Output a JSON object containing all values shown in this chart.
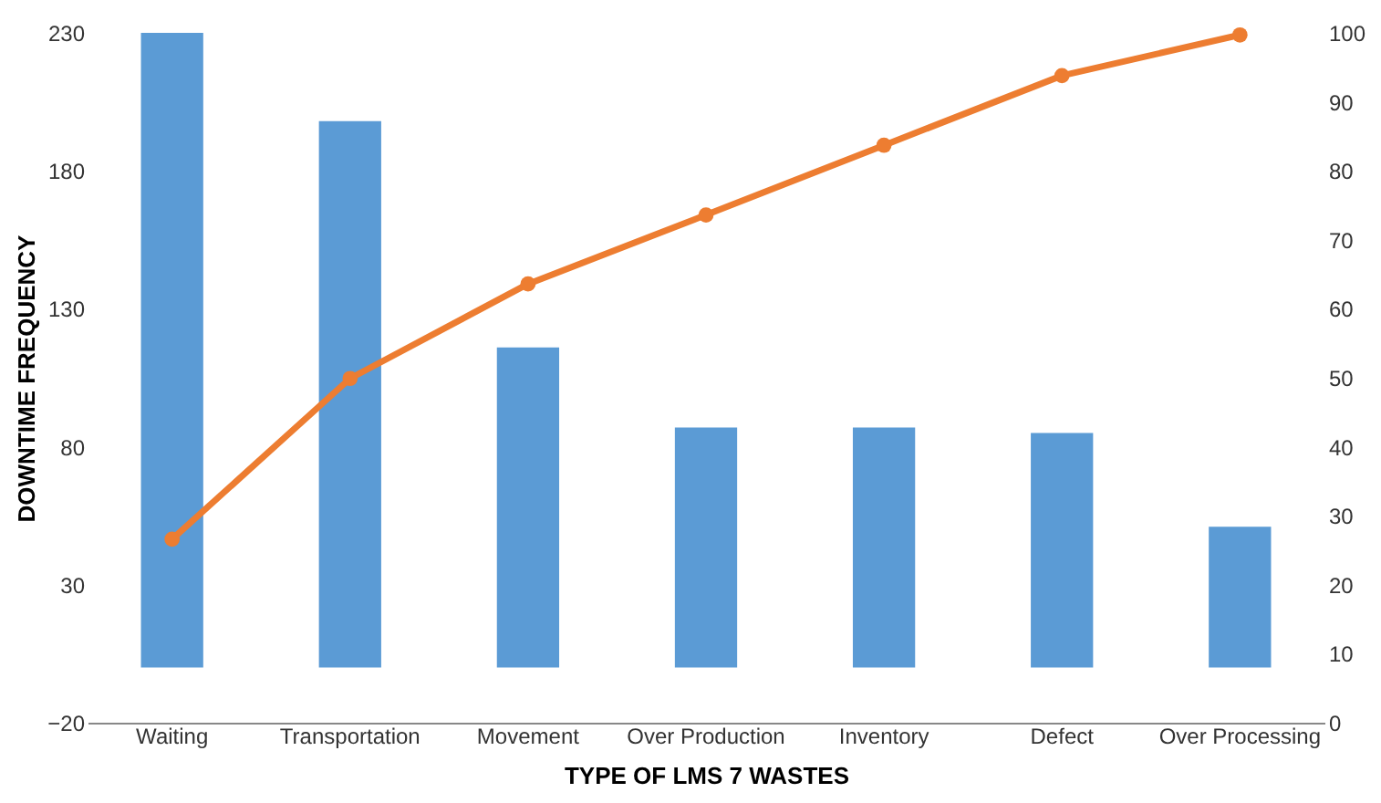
{
  "chart_data": {
    "type": "bar",
    "xlabel": "TYPE OF LMS 7 WASTES",
    "ylabel": "DOWNTIME FREQUENCY",
    "categories": [
      "Waiting",
      "Transportation",
      "Movement",
      "Over Production",
      "Inventory",
      "Defect",
      "Over Processing"
    ],
    "series": [
      {
        "color": "#5b9bd5",
        "values": [
          230,
          198,
          116,
          87,
          87,
          85,
          51
        ]
      },
      {
        "type": "line",
        "axis": "y2",
        "color": "#ed7d31",
        "marker": "circle",
        "values": [
          26.6,
          49.9,
          63.6,
          73.6,
          83.7,
          93.8,
          99.7
        ]
      }
    ],
    "ylim": [
      -20,
      230
    ],
    "yticks": [
      -20,
      30,
      80,
      130,
      180,
      230
    ],
    "y2lim": [
      0,
      100
    ],
    "y2ticks": [
      0,
      10,
      20,
      30,
      40,
      50,
      60,
      70,
      80,
      90,
      100
    ],
    "grid": false
  }
}
